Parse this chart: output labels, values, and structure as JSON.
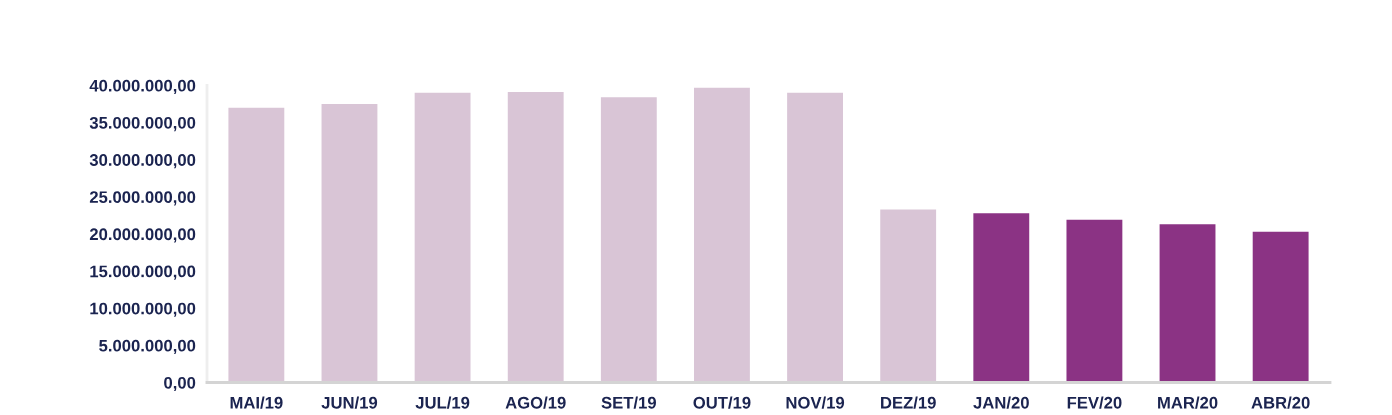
{
  "chart_data": {
    "type": "bar",
    "categories": [
      "MAI/19",
      "JUN/19",
      "JUL/19",
      "AGO/19",
      "SET/19",
      "OUT/19",
      "NOV/19",
      "DEZ/19",
      "JAN/20",
      "FEV/20",
      "MAR/20",
      "ABR/20"
    ],
    "values": [
      37000000,
      37500000,
      39000000,
      39100000,
      38400000,
      39700000,
      39000000,
      23300000,
      22800000,
      21900000,
      21300000,
      20300000
    ],
    "colors": [
      "#d9c5d6",
      "#d9c5d6",
      "#d9c5d6",
      "#d9c5d6",
      "#d9c5d6",
      "#d9c5d6",
      "#d9c5d6",
      "#d9c5d6",
      "#8b3384",
      "#8b3384",
      "#8b3384",
      "#8b3384"
    ],
    "ylim": [
      0,
      40000000
    ],
    "yticks": [
      {
        "value": 0,
        "label": "0,00"
      },
      {
        "value": 5000000,
        "label": "5.000.000,00"
      },
      {
        "value": 10000000,
        "label": "10.000.000,00"
      },
      {
        "value": 15000000,
        "label": "15.000.000,00"
      },
      {
        "value": 20000000,
        "label": "20.000.000,00"
      },
      {
        "value": 25000000,
        "label": "25.000.000,00"
      },
      {
        "value": 30000000,
        "label": "30.000.000,00"
      },
      {
        "value": 35000000,
        "label": "35.000.000,00"
      },
      {
        "value": 40000000,
        "label": "40.000.000,00"
      }
    ]
  }
}
